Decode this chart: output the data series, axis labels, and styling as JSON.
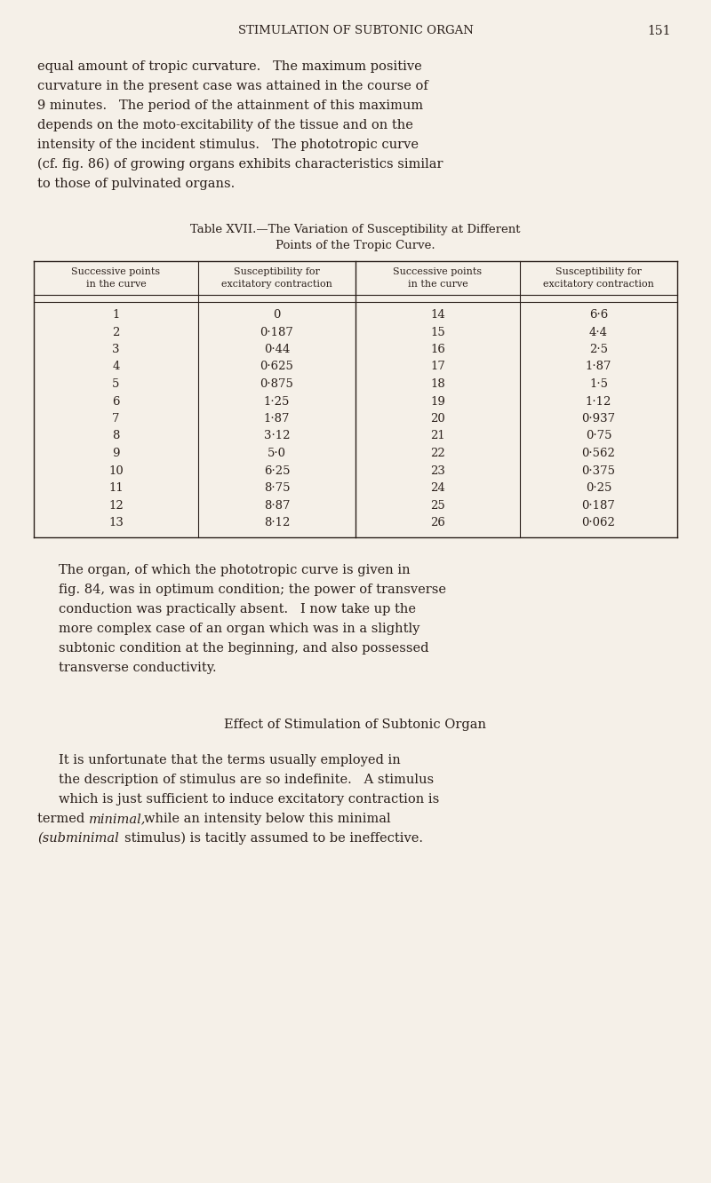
{
  "bg_color": "#f5f0e8",
  "text_color": "#2a1f1a",
  "page_width": 8.0,
  "page_height": 13.32,
  "header_text": "STIMULATION OF SUBTONIC ORGAN",
  "header_page": "151",
  "table_title1": "Table XVII.—The Variation of Susceptibility at Different",
  "table_title2": "Points of the Tropic Curve.",
  "col_headers": [
    "Successive points\nin the curve",
    "Susceptibility for\nexcitatory contraction",
    "Successive points\nin the curve",
    "Susceptibility for\nexcitatory contraction"
  ],
  "left_col1": [
    "1",
    "2",
    "3",
    "4",
    "5",
    "6",
    "7",
    "8",
    "9",
    "10",
    "11",
    "12",
    "13"
  ],
  "left_col2": [
    "0",
    "0·187",
    "0·44",
    "0·625",
    "0·875",
    "1·25",
    "1·87",
    "3·12",
    "5·0",
    "6·25",
    "8·75",
    "8·87",
    "8·12"
  ],
  "right_col1": [
    "14",
    "15",
    "16",
    "17",
    "18",
    "19",
    "20",
    "21",
    "22",
    "23",
    "24",
    "25",
    "26"
  ],
  "right_col2": [
    "6·6",
    "4·4",
    "2·5",
    "1·87",
    "1·5",
    "1·12",
    "0·937",
    "0·75",
    "0·562",
    "0·375",
    "0·25",
    "0·187",
    "0·062"
  ],
  "section_title": "Effect of Stimulation of Subtonic Organ",
  "para1_lines": [
    "equal amount of tropic curvature.   The maximum positive",
    "curvature in the present case was attained in the course of",
    "9 minutes.   The period of the attainment of this maximum",
    "depends on the moto-excitability of the tissue and on the",
    "intensity of the incident stimulus.   The phototropic curve",
    "(cf. fig. 86) of growing organs exhibits characteristics similar",
    "to those of pulvinated organs."
  ],
  "para2_lines": [
    "The organ, of which the phototropic curve is given in",
    "fig. 84, was in optimum condition; the power of transverse",
    "conduction was practically absent.   I now take up the",
    "more complex case of an organ which was in a slightly",
    "subtonic condition at the beginning, and also possessed",
    "transverse conductivity."
  ],
  "para3_lines": [
    "It is unfortunate that the terms usually employed in",
    "the description of stimulus are so indefinite.   A stimulus",
    "which is just sufficient to induce excitatory contraction is"
  ],
  "para3_line4_normal1": "termed ",
  "para3_line4_italic1": "minimal,",
  "para3_line4_normal2": " while an intensity below this minimal",
  "para3_line5_italic": "(subminimal",
  "para3_line5_normal": " stimulus) is tacitly assumed to be ineffective."
}
